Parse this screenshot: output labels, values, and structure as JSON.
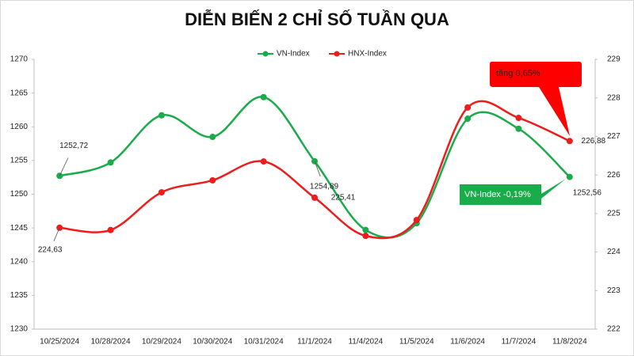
{
  "chart_data": {
    "type": "line",
    "title": "DIỄN BIẾN 2 CHỈ SỐ TUẦN QUA",
    "categories": [
      "10/25/2024",
      "10/28/2024",
      "10/29/2024",
      "10/30/2024",
      "10/31/2024",
      "11/1/2024",
      "11/4/2024",
      "11/5/2024",
      "11/6/2024",
      "11/7/2024",
      "11/8/2024"
    ],
    "series": [
      {
        "name": "VN-Index",
        "color": "#1aab4b",
        "values": [
          1252.72,
          1254.7,
          1261.7,
          1258.5,
          1264.4,
          1254.89,
          1244.7,
          1245.7,
          1261.2,
          1259.7,
          1252.56
        ],
        "value_labels": [
          "1252,72",
          null,
          null,
          null,
          null,
          "1254,89",
          null,
          null,
          null,
          null,
          "1252,56"
        ]
      },
      {
        "name": "HNX-Index",
        "color": "#ee1c1c",
        "axis": "y2",
        "values": [
          224.63,
          224.57,
          225.55,
          225.86,
          226.35,
          225.41,
          224.42,
          224.83,
          227.75,
          227.48,
          226.88
        ],
        "value_labels": [
          "224,63",
          null,
          null,
          null,
          null,
          "225,41",
          null,
          null,
          null,
          null,
          "226,88"
        ]
      }
    ],
    "ylim": [
      1230,
      1270
    ],
    "yticks": [
      1230,
      1235,
      1240,
      1245,
      1250,
      1255,
      1260,
      1265,
      1270
    ],
    "y2lim": [
      222,
      229
    ],
    "y2ticks": [
      222,
      223,
      224,
      225,
      226,
      227,
      228,
      229
    ],
    "annotations": [
      "tăng 0,65%",
      "VN-Index -0,19%"
    ]
  }
}
